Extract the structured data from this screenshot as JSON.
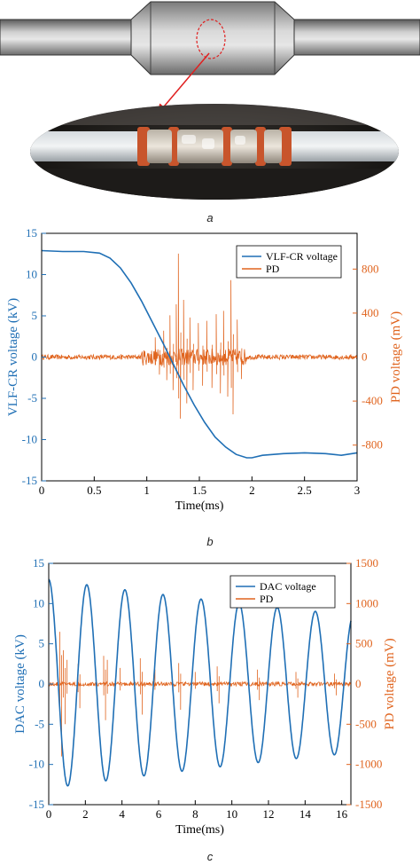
{
  "captions": {
    "a": "a",
    "b": "b",
    "c": "c"
  },
  "colors": {
    "voltage": "#1f6fb5",
    "pd": "#e0641e"
  },
  "chart_data": [
    {
      "type": "line",
      "panel": "b",
      "xlabel": "Time(ms)",
      "ylabel": "VLF-CR voltage (kV)",
      "y2label": "PD voltage (mV)",
      "xlim": [
        0,
        3
      ],
      "ylim": [
        -15,
        15
      ],
      "y2lim": [
        -1125,
        1125
      ],
      "xticks": [
        "0",
        "0.5",
        "1",
        "1.5",
        "2",
        "2.5",
        "3"
      ],
      "yticks": [
        "15",
        "10",
        "5",
        "0",
        "-5",
        "-10",
        "-15"
      ],
      "y2ticks": [
        "800",
        "400",
        "0",
        "-400",
        "-800"
      ],
      "legend": [
        "VLF-CR voltage",
        "PD"
      ],
      "legend_position": "top-right",
      "series": [
        {
          "name": "VLF-CR voltage",
          "axis": "left",
          "x": [
            0,
            0.2,
            0.4,
            0.55,
            0.65,
            0.75,
            0.85,
            0.95,
            1.05,
            1.15,
            1.25,
            1.35,
            1.45,
            1.55,
            1.65,
            1.75,
            1.85,
            1.95,
            2.0,
            2.1,
            2.3,
            2.5,
            2.7,
            2.85,
            3.0
          ],
          "y": [
            12.9,
            12.8,
            12.8,
            12.6,
            12.0,
            10.8,
            9.0,
            6.8,
            4.3,
            1.8,
            -0.8,
            -3.4,
            -5.8,
            -7.9,
            -9.7,
            -10.9,
            -11.8,
            -12.2,
            -12.2,
            -11.9,
            -11.7,
            -11.6,
            -11.7,
            -11.9,
            -11.6
          ]
        },
        {
          "name": "PD",
          "axis": "right",
          "noise": 22,
          "burst": [
            0.95,
            1.95
          ],
          "spikes": [
            [
              1.08,
              180
            ],
            [
              1.12,
              -160
            ],
            [
              1.16,
              240
            ],
            [
              1.19,
              -210
            ],
            [
              1.22,
              380
            ],
            [
              1.25,
              -300
            ],
            [
              1.28,
              480
            ],
            [
              1.3,
              940
            ],
            [
              1.32,
              -560
            ],
            [
              1.35,
              520
            ],
            [
              1.38,
              -420
            ],
            [
              1.41,
              360
            ],
            [
              1.44,
              -300
            ],
            [
              1.49,
              310
            ],
            [
              1.53,
              -260
            ],
            [
              1.57,
              330
            ],
            [
              1.62,
              -280
            ],
            [
              1.66,
              390
            ],
            [
              1.7,
              -330
            ],
            [
              1.73,
              420
            ],
            [
              1.77,
              -360
            ],
            [
              1.8,
              700
            ],
            [
              1.82,
              -520
            ],
            [
              1.86,
              340
            ],
            [
              1.9,
              -200
            ]
          ]
        }
      ]
    },
    {
      "type": "line",
      "panel": "c",
      "xlabel": "Time(ms)",
      "ylabel": "DAC voltage (kV)",
      "y2label": "PD voltage (mV)",
      "xlim": [
        0,
        16.5
      ],
      "ylim": [
        -15,
        15
      ],
      "y2lim": [
        -1500,
        1500
      ],
      "xticks": [
        "0",
        "2",
        "4",
        "6",
        "8",
        "10",
        "12",
        "14",
        "16"
      ],
      "yticks": [
        "15",
        "10",
        "5",
        "0",
        "-5",
        "-10",
        "-15"
      ],
      "y2ticks": [
        "1500",
        "1000",
        "500",
        "0",
        "-500",
        "-1000",
        "-1500"
      ],
      "legend": [
        "DAC voltage",
        "PD"
      ],
      "legend_position": "top-right",
      "series": [
        {
          "name": "DAC voltage",
          "axis": "left",
          "form": "damped-sine",
          "amplitude": 13.0,
          "period_ms": 2.08,
          "tau_ms": 40,
          "cosine_start": true
        },
        {
          "name": "PD",
          "axis": "right",
          "noise": 25,
          "spikes": [
            [
              0.6,
              650
            ],
            [
              0.7,
              -900
            ],
            [
              0.8,
              420
            ],
            [
              0.9,
              -500
            ],
            [
              1.0,
              300
            ],
            [
              1.6,
              250
            ],
            [
              1.7,
              -300
            ],
            [
              3.0,
              350
            ],
            [
              3.1,
              -450
            ],
            [
              3.2,
              300
            ],
            [
              3.9,
              200
            ],
            [
              5.0,
              320
            ],
            [
              5.1,
              -380
            ],
            [
              5.8,
              180
            ],
            [
              7.1,
              260
            ],
            [
              7.2,
              -320
            ],
            [
              8.0,
              150
            ],
            [
              9.2,
              220
            ],
            [
              9.3,
              -240
            ],
            [
              11.4,
              180
            ],
            [
              11.5,
              -200
            ],
            [
              13.5,
              150
            ],
            [
              13.6,
              -170
            ],
            [
              15.6,
              130
            ],
            [
              15.7,
              -140
            ]
          ]
        }
      ]
    }
  ]
}
